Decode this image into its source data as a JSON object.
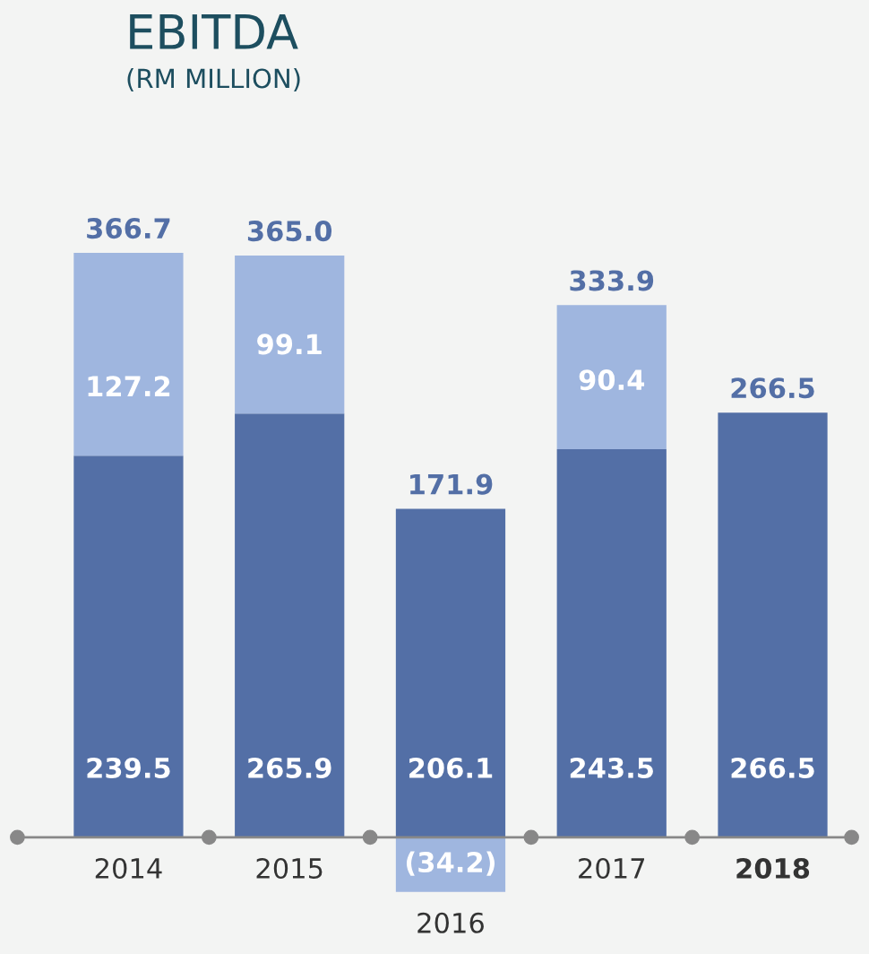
{
  "chart_data": {
    "type": "bar",
    "title": "EBITDA",
    "subtitle": "(RM MILLION)",
    "stacked": true,
    "categories": [
      "2014",
      "2015",
      "2016",
      "2017",
      "2018"
    ],
    "series": [
      {
        "color": "#536fa6",
        "values": [
          239.5,
          265.9,
          206.1,
          243.5,
          266.5
        ],
        "value_labels": [
          "239.5",
          "265.9",
          "206.1",
          "243.5",
          "266.5"
        ]
      },
      {
        "color": "#9fb6df",
        "values": [
          127.2,
          99.1,
          -34.2,
          90.4,
          null
        ],
        "value_labels": [
          "127.2",
          "99.1",
          "(34.2)",
          "90.4",
          null
        ]
      }
    ],
    "totals": [
      "366.7",
      "365.0",
      "171.9",
      "333.9",
      "266.5"
    ],
    "legend": false
  }
}
